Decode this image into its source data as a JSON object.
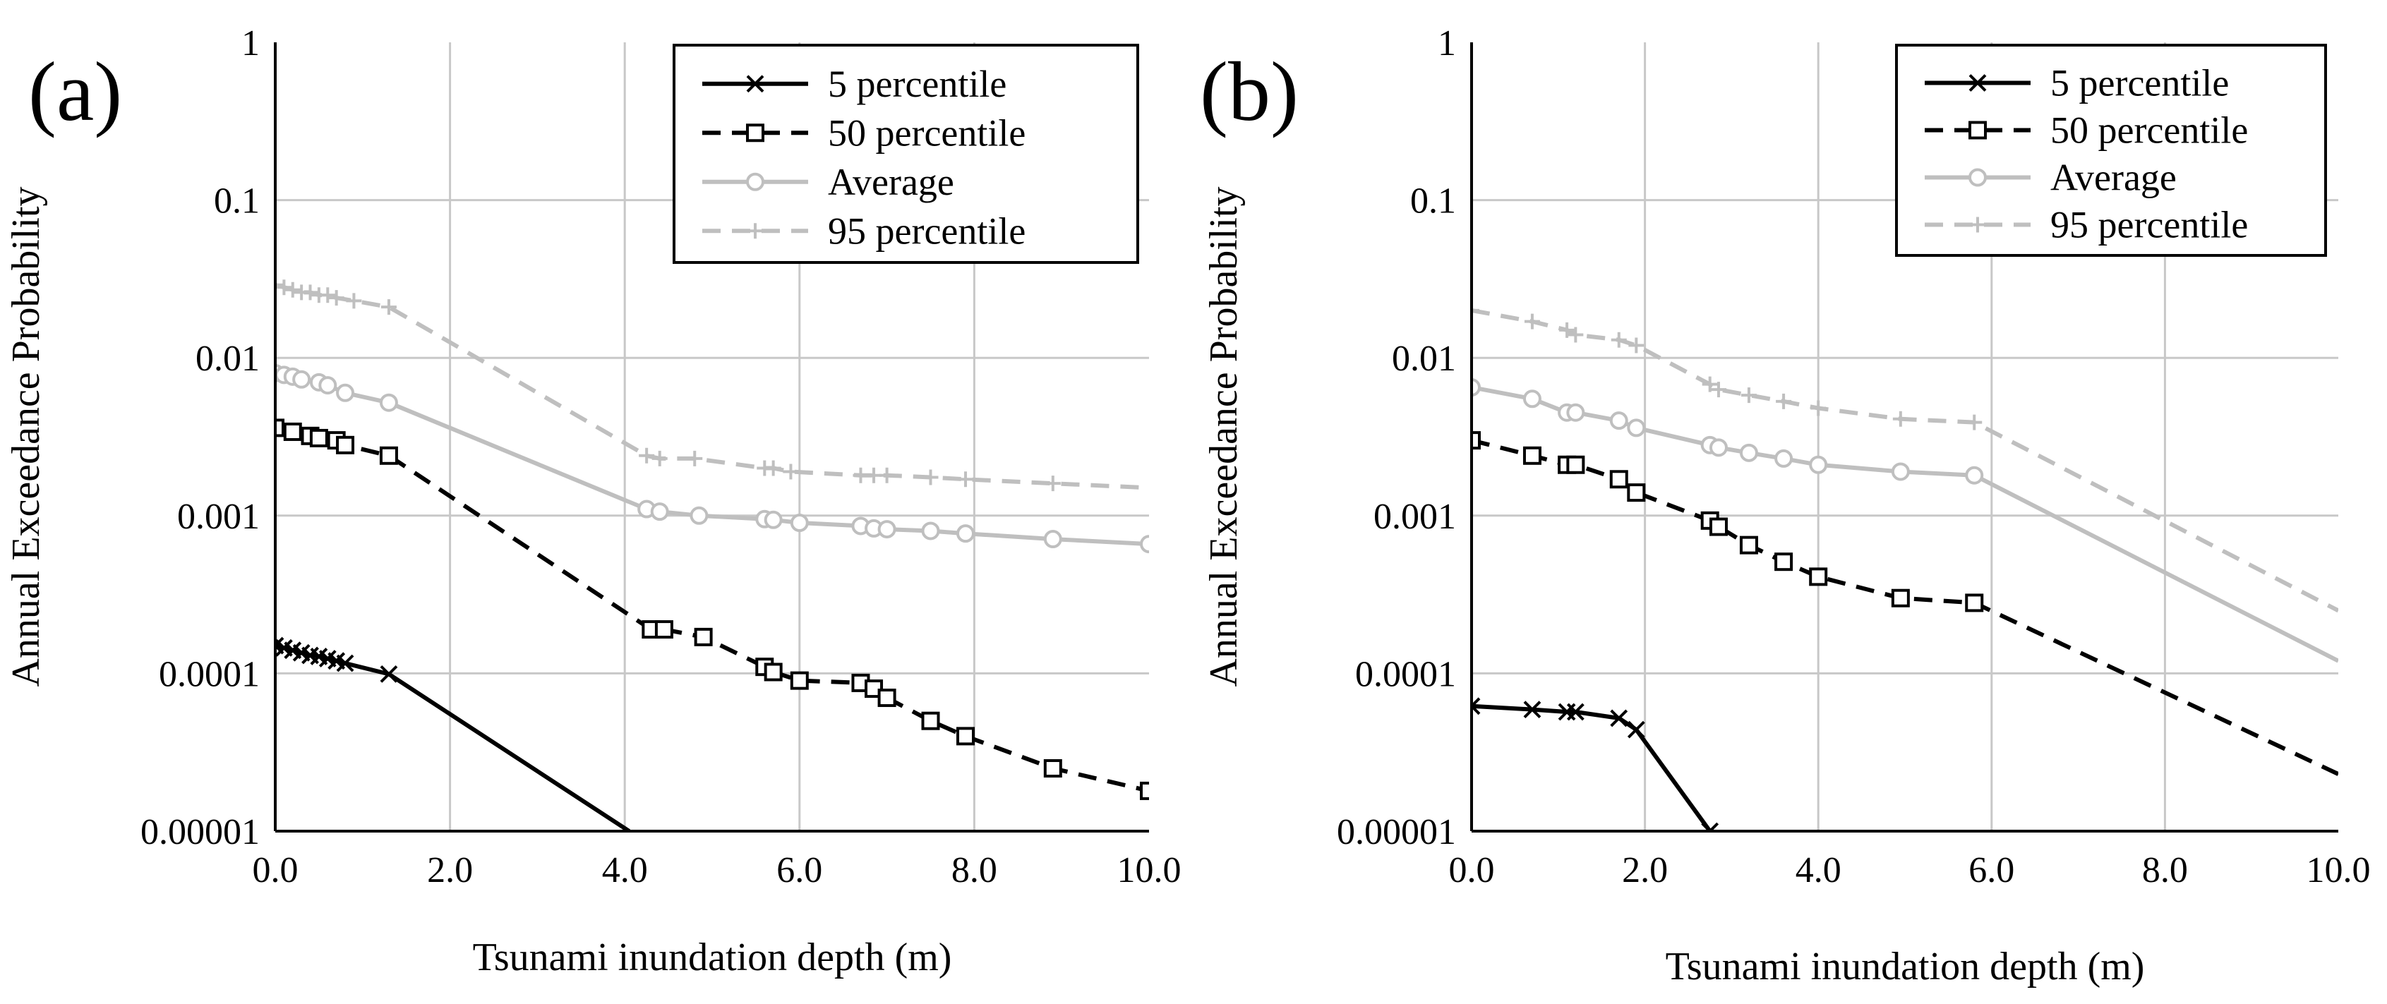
{
  "chart_data": [
    {
      "type": "line",
      "panel_label": "(a)",
      "xlabel": "Tsunami inundation depth (m)",
      "ylabel": "Annual Exceedance Probability",
      "xlim": [
        0,
        10
      ],
      "ylim": [
        1e-05,
        1
      ],
      "yscale": "log",
      "x_tick_labels": [
        "0.0",
        "2.0",
        "4.0",
        "6.0",
        "8.0",
        "10.0"
      ],
      "y_tick_labels": [
        "0.00001",
        "0.0001",
        "0.001",
        "0.01",
        "0.1",
        "1"
      ],
      "grid": true,
      "legend_position": "top-right",
      "series": [
        {
          "name": "5 percentile",
          "style": "solid-black-x",
          "x": [
            0.0,
            0.1,
            0.2,
            0.3,
            0.4,
            0.5,
            0.6,
            0.7,
            0.8,
            1.3,
            4.05
          ],
          "y": [
            0.00015,
            0.000145,
            0.00014,
            0.000135,
            0.00013,
            0.000128,
            0.000124,
            0.00012,
            0.000116,
            9.9e-05,
            1e-05
          ],
          "markers": [
            true,
            true,
            true,
            true,
            true,
            true,
            true,
            true,
            true,
            true,
            false
          ]
        },
        {
          "name": "50 percentile",
          "style": "dashed-black-square",
          "x": [
            0.0,
            0.2,
            0.4,
            0.5,
            0.7,
            0.8,
            1.3,
            4.3,
            4.45,
            4.9,
            5.6,
            5.7,
            6.0,
            6.7,
            6.85,
            7.0,
            7.5,
            7.9,
            8.9,
            10.0
          ],
          "y": [
            0.0036,
            0.0034,
            0.0032,
            0.0031,
            0.003,
            0.0028,
            0.0024,
            0.00019,
            0.00019,
            0.00017,
            0.00011,
            0.000102,
            9e-05,
            8.7e-05,
            8e-05,
            7e-05,
            5e-05,
            4e-05,
            2.5e-05,
            1.8e-05
          ]
        },
        {
          "name": "Average",
          "style": "solid-gray-circle",
          "x": [
            0.0,
            0.1,
            0.2,
            0.3,
            0.5,
            0.6,
            0.8,
            1.3,
            4.25,
            4.4,
            4.85,
            5.6,
            5.7,
            6.0,
            6.7,
            6.85,
            7.0,
            7.5,
            7.9,
            8.9,
            10.0
          ],
          "y": [
            0.008,
            0.0078,
            0.0076,
            0.0073,
            0.007,
            0.0067,
            0.006,
            0.0052,
            0.0011,
            0.00106,
            0.001,
            0.00095,
            0.00094,
            0.0009,
            0.00086,
            0.00083,
            0.00082,
            0.0008,
            0.00077,
            0.00071,
            0.00066
          ]
        },
        {
          "name": "95 percentile",
          "style": "dashed-gray-plus",
          "x": [
            0.0,
            0.1,
            0.2,
            0.3,
            0.4,
            0.5,
            0.6,
            0.7,
            0.9,
            1.3,
            4.25,
            4.4,
            4.8,
            5.6,
            5.7,
            5.9,
            6.7,
            6.85,
            7.0,
            7.5,
            7.9,
            8.9,
            10.0
          ],
          "y": [
            0.029,
            0.028,
            0.027,
            0.026,
            0.026,
            0.025,
            0.025,
            0.024,
            0.023,
            0.021,
            0.0024,
            0.0023,
            0.0023,
            0.002,
            0.002,
            0.0019,
            0.0018,
            0.0018,
            0.0018,
            0.00175,
            0.0017,
            0.0016,
            0.0015
          ],
          "markers": [
            true,
            true,
            true,
            true,
            true,
            true,
            true,
            true,
            true,
            true,
            true,
            true,
            true,
            true,
            true,
            true,
            true,
            true,
            true,
            true,
            true,
            true,
            false
          ]
        }
      ]
    },
    {
      "type": "line",
      "panel_label": "(b)",
      "xlabel": "Tsunami inundation depth (m)",
      "ylabel": "Annual Exceedance Probability",
      "xlim": [
        0,
        10
      ],
      "ylim": [
        1e-05,
        1
      ],
      "yscale": "log",
      "x_tick_labels": [
        "0.0",
        "2.0",
        "4.0",
        "6.0",
        "8.0",
        "10.0"
      ],
      "y_tick_labels": [
        "0.00001",
        "0.0001",
        "0.001",
        "0.01",
        "0.1",
        "1"
      ],
      "grid": true,
      "legend_position": "top-right",
      "series": [
        {
          "name": "5 percentile",
          "style": "solid-black-x",
          "x": [
            0.0,
            0.7,
            1.1,
            1.2,
            1.7,
            1.9,
            2.75
          ],
          "y": [
            6.2e-05,
            5.9e-05,
            5.7e-05,
            5.7e-05,
            5.2e-05,
            4.4e-05,
            1e-05
          ]
        },
        {
          "name": "50 percentile",
          "style": "dashed-black-square",
          "x": [
            0.0,
            0.7,
            1.1,
            1.2,
            1.7,
            1.9,
            2.75,
            2.85,
            3.2,
            3.6,
            4.0,
            4.95,
            5.8,
            10.0
          ],
          "y": [
            0.003,
            0.0024,
            0.0021,
            0.0021,
            0.0017,
            0.0014,
            0.00093,
            0.00085,
            0.00065,
            0.00051,
            0.00041,
            0.0003,
            0.00028,
            2.3e-05
          ],
          "markers": [
            true,
            true,
            true,
            true,
            true,
            true,
            true,
            true,
            true,
            true,
            true,
            true,
            true,
            false
          ]
        },
        {
          "name": "Average",
          "style": "solid-gray-circle",
          "x": [
            0.0,
            0.7,
            1.1,
            1.2,
            1.7,
            1.9,
            2.75,
            2.85,
            3.2,
            3.6,
            4.0,
            4.95,
            5.8,
            10.0
          ],
          "y": [
            0.0065,
            0.0055,
            0.0045,
            0.0045,
            0.004,
            0.0036,
            0.0028,
            0.0027,
            0.0025,
            0.0023,
            0.0021,
            0.0019,
            0.0018,
            0.00012
          ],
          "markers": [
            true,
            true,
            true,
            true,
            true,
            true,
            true,
            true,
            true,
            true,
            true,
            true,
            true,
            false
          ]
        },
        {
          "name": "95 percentile",
          "style": "dashed-gray-plus",
          "x": [
            0.0,
            0.7,
            1.1,
            1.2,
            1.7,
            1.9,
            2.75,
            2.85,
            3.2,
            3.6,
            4.0,
            4.95,
            5.8,
            10.0
          ],
          "y": [
            0.02,
            0.017,
            0.015,
            0.014,
            0.013,
            0.012,
            0.0068,
            0.0063,
            0.0058,
            0.0053,
            0.0048,
            0.0041,
            0.0039,
            0.00025
          ],
          "markers": [
            true,
            true,
            true,
            true,
            true,
            true,
            true,
            true,
            true,
            true,
            true,
            true,
            true,
            false
          ]
        }
      ]
    }
  ]
}
